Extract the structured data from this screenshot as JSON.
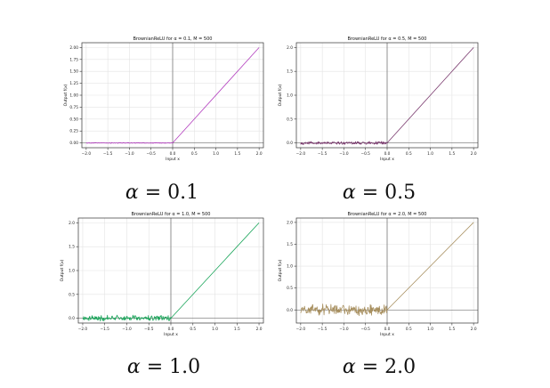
{
  "chart_data": [
    {
      "type": "line",
      "title": "BrownianReLU for α = 0.1, M = 500",
      "xlabel": "Input x",
      "ylabel": "Output f(x)",
      "xlim": [
        -2.1,
        2.1
      ],
      "ylim": [
        -0.1,
        2.1
      ],
      "xticks": [
        "−2.0",
        "−1.5",
        "−1.0",
        "−0.5",
        "0.0",
        "0.5",
        "1.0",
        "1.5",
        "2.0"
      ],
      "yticks": [
        "0.00",
        "0.25",
        "0.50",
        "0.75",
        "1.00",
        "1.25",
        "1.50",
        "1.75",
        "2.00"
      ],
      "ytick_values": [
        0,
        0.25,
        0.5,
        0.75,
        1.0,
        1.25,
        1.5,
        1.75,
        2.0
      ],
      "grid": true,
      "color": "#b33fbf",
      "noise_amplitude": 0.01,
      "caption": "α = 0.1",
      "caption_left": "α",
      "caption_right": "= 0.1",
      "series": [
        {
          "x": [
            -2.0,
            0.0,
            2.0
          ],
          "values": [
            0.0,
            0.0,
            2.0
          ]
        }
      ]
    },
    {
      "type": "line",
      "title": "BrownianReLU for α = 0.5, M = 500",
      "xlabel": "Input x",
      "ylabel": "Output f(x)",
      "xlim": [
        -2.1,
        2.1
      ],
      "ylim": [
        -0.1,
        2.1
      ],
      "xticks": [
        "−2.0",
        "−1.5",
        "−1.0",
        "−0.5",
        "0.0",
        "0.5",
        "1.0",
        "1.5",
        "2.0"
      ],
      "yticks": [
        "0.0",
        "0.5",
        "1.0",
        "1.5",
        "2.0"
      ],
      "ytick_values": [
        0,
        0.5,
        1.0,
        1.5,
        2.0
      ],
      "grid": true,
      "color": "#7a3a6e",
      "noise_amplitude": 0.035,
      "caption": "α = 0.5",
      "caption_left": "α",
      "caption_right": "= 0.5",
      "series": [
        {
          "x": [
            -2.0,
            0.0,
            2.0
          ],
          "values": [
            0.0,
            0.0,
            2.0
          ]
        }
      ]
    },
    {
      "type": "line",
      "title": "BrownianReLU for α = 1.0, M = 500",
      "xlabel": "Input x",
      "ylabel": "Output f(x)",
      "xlim": [
        -2.1,
        2.1
      ],
      "ylim": [
        -0.1,
        2.1
      ],
      "xticks": [
        "−2.0",
        "−1.5",
        "−1.0",
        "−0.5",
        "0.0",
        "0.5",
        "1.0",
        "1.5",
        "2.0"
      ],
      "yticks": [
        "0.0",
        "0.5",
        "1.0",
        "1.5",
        "2.0"
      ],
      "ytick_values": [
        0,
        0.5,
        1.0,
        1.5,
        2.0
      ],
      "grid": true,
      "color": "#1aa55a",
      "noise_amplitude": 0.07,
      "caption": "α = 1.0",
      "caption_left": "α",
      "caption_right": "= 1.0",
      "series": [
        {
          "x": [
            -2.0,
            0.0,
            2.0
          ],
          "values": [
            0.0,
            0.0,
            2.0
          ]
        }
      ]
    },
    {
      "type": "line",
      "title": "BrownianReLU for α = 2.0, M = 500",
      "xlabel": "Input x",
      "ylabel": "Output f(x)",
      "xlim": [
        -2.1,
        2.1
      ],
      "ylim": [
        -0.3,
        2.1
      ],
      "xticks": [
        "−2.0",
        "−1.5",
        "−1.0",
        "−0.5",
        "0.0",
        "0.5",
        "1.0",
        "1.5",
        "2.0"
      ],
      "yticks": [
        "0.0",
        "0.5",
        "1.0",
        "1.5",
        "2.0"
      ],
      "ytick_values": [
        0,
        0.5,
        1.0,
        1.5,
        2.0
      ],
      "grid": true,
      "color": "#a89060",
      "noise_amplitude": 0.14,
      "caption": "α = 2.0",
      "caption_left": "α",
      "caption_right": "= 2.0",
      "series": [
        {
          "x": [
            -2.0,
            0.0,
            2.0
          ],
          "values": [
            0.0,
            0.0,
            2.0
          ]
        }
      ]
    }
  ]
}
